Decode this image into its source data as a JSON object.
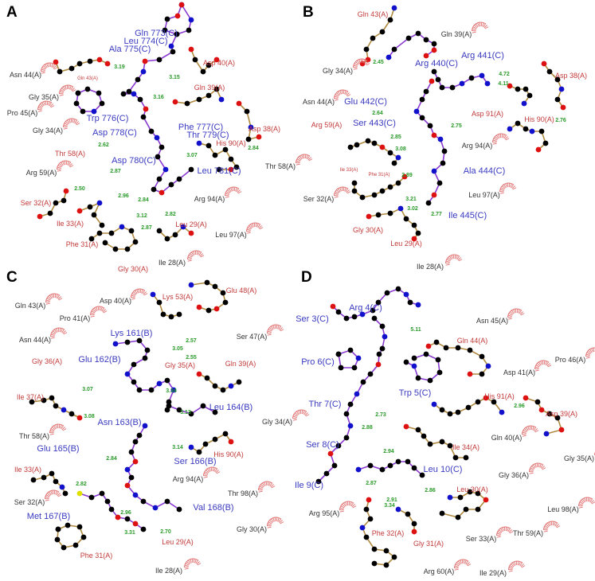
{
  "colors": {
    "ligand": "#3a3ac0",
    "hbond_residue": "#c23a3a",
    "hydrophobic_residue": "#333333",
    "distance": "#2a9a2a",
    "ligand_bond": "#8a3ad0",
    "residue_bond": "#b08a40",
    "carbon": "#000000",
    "oxygen": "#dd1111",
    "nitrogen": "#1111cc",
    "sulfur": "#e0e000",
    "hydrophobic_arc": "#e07070"
  },
  "panels": [
    {
      "letter": "A",
      "labels": [
        {
          "text": "Gln 773(C)",
          "kind": "ligand"
        },
        {
          "text": "Leu 774(C)",
          "kind": "ligand"
        },
        {
          "text": "Ala 775(C)",
          "kind": "ligand"
        },
        {
          "text": "Asn 44(A)",
          "kind": "hydrophobic"
        },
        {
          "text": "Gln 43(A)",
          "kind": "hbond-small"
        },
        {
          "text": "3.19",
          "kind": "distance"
        },
        {
          "text": "Asp 40(A)",
          "kind": "hbond"
        },
        {
          "text": "3.15",
          "kind": "distance"
        },
        {
          "text": "Gln 39(A)",
          "kind": "hbond"
        },
        {
          "text": "3.16",
          "kind": "distance"
        },
        {
          "text": "Gly 35(A)",
          "kind": "hydrophobic"
        },
        {
          "text": "Pro 45(A)",
          "kind": "hydrophobic"
        },
        {
          "text": "Trp 776(C)",
          "kind": "ligand"
        },
        {
          "text": "Gly 34(A)",
          "kind": "hydrophobic"
        },
        {
          "text": "Phe 777(C)",
          "kind": "ligand"
        },
        {
          "text": "Asp 778(C)",
          "kind": "ligand"
        },
        {
          "text": "Thr 779(C)",
          "kind": "ligand"
        },
        {
          "text": "Asp 38(A)",
          "kind": "hbond"
        },
        {
          "text": "His 90(A)",
          "kind": "hbond"
        },
        {
          "text": "2.62",
          "kind": "distance"
        },
        {
          "text": "2.84",
          "kind": "distance"
        },
        {
          "text": "3.07",
          "kind": "distance"
        },
        {
          "text": "Thr 58(A)",
          "kind": "hbond"
        },
        {
          "text": "Asp 780(C)",
          "kind": "ligand"
        },
        {
          "text": "Arg 59(A)",
          "kind": "hydrophobic"
        },
        {
          "text": "2.87",
          "kind": "distance"
        },
        {
          "text": "Leu 781(C)",
          "kind": "ligand"
        },
        {
          "text": "2.50",
          "kind": "distance"
        },
        {
          "text": "2.96",
          "kind": "distance"
        },
        {
          "text": "Arg 94(A)",
          "kind": "hydrophobic"
        },
        {
          "text": "2.84",
          "kind": "distance"
        },
        {
          "text": "Ser 32(A)",
          "kind": "hbond"
        },
        {
          "text": "2.82",
          "kind": "distance"
        },
        {
          "text": "Ile 33(A)",
          "kind": "hbond"
        },
        {
          "text": "3.12",
          "kind": "distance"
        },
        {
          "text": "Leu 29(A)",
          "kind": "hbond"
        },
        {
          "text": "2.87",
          "kind": "distance"
        },
        {
          "text": "Leu 97(A)",
          "kind": "hydrophobic"
        },
        {
          "text": "Phe 31(A)",
          "kind": "hbond"
        },
        {
          "text": "Ile 28(A)",
          "kind": "hydrophobic"
        },
        {
          "text": "Gly 30(A)",
          "kind": "hbond"
        }
      ]
    },
    {
      "letter": "B",
      "labels": [
        {
          "text": "Gln 43(A)",
          "kind": "hbond"
        },
        {
          "text": "Gln 39(A)",
          "kind": "hydrophobic"
        },
        {
          "text": "Arg 441(C)",
          "kind": "ligand"
        },
        {
          "text": "Arg 440(C)",
          "kind": "ligand"
        },
        {
          "text": "2.45",
          "kind": "distance"
        },
        {
          "text": "Gly 34(A)",
          "kind": "hydrophobic"
        },
        {
          "text": "Asp 38(A)",
          "kind": "hbond"
        },
        {
          "text": "4.72",
          "kind": "distance"
        },
        {
          "text": "4.11",
          "kind": "distance"
        },
        {
          "text": "Asn 44(A)",
          "kind": "hydrophobic"
        },
        {
          "text": "Glu 442(C)",
          "kind": "ligand"
        },
        {
          "text": "2.64",
          "kind": "distance"
        },
        {
          "text": "Asp 91(A)",
          "kind": "hbond"
        },
        {
          "text": "His 90(A)",
          "kind": "hbond"
        },
        {
          "text": "2.76",
          "kind": "distance"
        },
        {
          "text": "Arg 59(A)",
          "kind": "hbond"
        },
        {
          "text": "Ser 443(C)",
          "kind": "ligand"
        },
        {
          "text": "2.75",
          "kind": "distance"
        },
        {
          "text": "2.85",
          "kind": "distance"
        },
        {
          "text": "Thr 58(A)",
          "kind": "hydrophobic"
        },
        {
          "text": "3.08",
          "kind": "distance"
        },
        {
          "text": "Arg 94(A)",
          "kind": "hydrophobic"
        },
        {
          "text": "Ile 33(A)",
          "kind": "hbond-small"
        },
        {
          "text": "Phe 31(A)",
          "kind": "hbond-small"
        },
        {
          "text": "Ala 444(C)",
          "kind": "ligand"
        },
        {
          "text": "2.89",
          "kind": "distance"
        },
        {
          "text": "Leu 97(A)",
          "kind": "hydrophobic"
        },
        {
          "text": "Ser 32(A)",
          "kind": "hydrophobic"
        },
        {
          "text": "3.21",
          "kind": "distance"
        },
        {
          "text": "3.02",
          "kind": "distance"
        },
        {
          "text": "Ile 445(C)",
          "kind": "ligand"
        },
        {
          "text": "2.77",
          "kind": "distance"
        },
        {
          "text": "Gly 30(A)",
          "kind": "hbond"
        },
        {
          "text": "Leu 29(A)",
          "kind": "hbond"
        },
        {
          "text": "Ile 28(A)",
          "kind": "hydrophobic"
        }
      ]
    },
    {
      "letter": "C",
      "labels": [
        {
          "text": "Lys 53(A)",
          "kind": "hbond"
        },
        {
          "text": "Glu 48(A)",
          "kind": "hbond"
        },
        {
          "text": "Gln 43(A)",
          "kind": "hydrophobic"
        },
        {
          "text": "Asp 40(A)",
          "kind": "hydrophobic"
        },
        {
          "text": "Pro 41(A)",
          "kind": "hydrophobic"
        },
        {
          "text": "Lys 161(B)",
          "kind": "ligand"
        },
        {
          "text": "Ser 47(A)",
          "kind": "hydrophobic"
        },
        {
          "text": "Asn 44(A)",
          "kind": "hydrophobic"
        },
        {
          "text": "2.57",
          "kind": "distance"
        },
        {
          "text": "3.05",
          "kind": "distance"
        },
        {
          "text": "2.55",
          "kind": "distance"
        },
        {
          "text": "Glu 162(B)",
          "kind": "ligand"
        },
        {
          "text": "Gly 36(A)",
          "kind": "hbond"
        },
        {
          "text": "Gly 35(A)",
          "kind": "hbond"
        },
        {
          "text": "Gln 39(A)",
          "kind": "hbond"
        },
        {
          "text": "3.07",
          "kind": "distance"
        },
        {
          "text": "3.34",
          "kind": "distance"
        },
        {
          "text": "Ile 37(A)",
          "kind": "hbond"
        },
        {
          "text": "3.13",
          "kind": "distance"
        },
        {
          "text": "Leu 164(B)",
          "kind": "ligand"
        },
        {
          "text": "3.08",
          "kind": "distance"
        },
        {
          "text": "Asn 163(B)",
          "kind": "ligand"
        },
        {
          "text": "Gly 34(A)",
          "kind": "hydrophobic"
        },
        {
          "text": "Thr 58(A)",
          "kind": "hydrophobic"
        },
        {
          "text": "Glu 165(B)",
          "kind": "ligand"
        },
        {
          "text": "3.14",
          "kind": "distance"
        },
        {
          "text": "His 90(A)",
          "kind": "hbond"
        },
        {
          "text": "2.84",
          "kind": "distance"
        },
        {
          "text": "Ser 166(B)",
          "kind": "ligand"
        },
        {
          "text": "Ile 33(A)",
          "kind": "hbond"
        },
        {
          "text": "Arg 94(A)",
          "kind": "hydrophobic"
        },
        {
          "text": "2.82",
          "kind": "distance"
        },
        {
          "text": "Thr 98(A)",
          "kind": "hydrophobic"
        },
        {
          "text": "Ser 32(A)",
          "kind": "hydrophobic"
        },
        {
          "text": "Val 168(B)",
          "kind": "ligand"
        },
        {
          "text": "2.96",
          "kind": "distance"
        },
        {
          "text": "Met 167(B)",
          "kind": "ligand"
        },
        {
          "text": "Gly 30(A)",
          "kind": "hydrophobic"
        },
        {
          "text": "3.31",
          "kind": "distance"
        },
        {
          "text": "2.70",
          "kind": "distance"
        },
        {
          "text": "Leu 29(A)",
          "kind": "hbond"
        },
        {
          "text": "Phe 31(A)",
          "kind": "hbond"
        },
        {
          "text": "Ile 28(A)",
          "kind": "hydrophobic"
        }
      ]
    },
    {
      "letter": "D",
      "labels": [
        {
          "text": "Arg 4(C)",
          "kind": "ligand"
        },
        {
          "text": "Ser 3(C)",
          "kind": "ligand"
        },
        {
          "text": "Asn 45(A)",
          "kind": "hydrophobic"
        },
        {
          "text": "5.11",
          "kind": "distance"
        },
        {
          "text": "Gln 44(A)",
          "kind": "hbond"
        },
        {
          "text": "Pro 46(A)",
          "kind": "hydrophobic"
        },
        {
          "text": "Pro 6(C)",
          "kind": "ligand"
        },
        {
          "text": "Asp 41(A)",
          "kind": "hydrophobic"
        },
        {
          "text": "Trp 5(C)",
          "kind": "ligand"
        },
        {
          "text": "His 91(A)",
          "kind": "hbond"
        },
        {
          "text": "2.96",
          "kind": "distance"
        },
        {
          "text": "Thr 7(C)",
          "kind": "ligand"
        },
        {
          "text": "2.73",
          "kind": "distance"
        },
        {
          "text": "Asp 39(A)",
          "kind": "hbond"
        },
        {
          "text": "2.88",
          "kind": "distance"
        },
        {
          "text": "Gln 40(A)",
          "kind": "hydrophobic"
        },
        {
          "text": "Ser 8(C)",
          "kind": "ligand"
        },
        {
          "text": "Ile 34(A)",
          "kind": "hbond"
        },
        {
          "text": "2.94",
          "kind": "distance"
        },
        {
          "text": "Gly 35(A)",
          "kind": "hydrophobic"
        },
        {
          "text": "Leu 10(C)",
          "kind": "ligand"
        },
        {
          "text": "Gly 36(A)",
          "kind": "hydrophobic"
        },
        {
          "text": "Ile 9(C)",
          "kind": "ligand"
        },
        {
          "text": "2.87",
          "kind": "distance"
        },
        {
          "text": "Leu 30(A)",
          "kind": "hbond"
        },
        {
          "text": "2.86",
          "kind": "distance"
        },
        {
          "text": "2.91",
          "kind": "distance"
        },
        {
          "text": "3.34",
          "kind": "distance"
        },
        {
          "text": "Leu 98(A)",
          "kind": "hydrophobic"
        },
        {
          "text": "Arg 95(A)",
          "kind": "hydrophobic"
        },
        {
          "text": "Phe 32(A)",
          "kind": "hbond"
        },
        {
          "text": "Thr 59(A)",
          "kind": "hydrophobic"
        },
        {
          "text": "Gly 31(A)",
          "kind": "hbond"
        },
        {
          "text": "Ser 33(A)",
          "kind": "hydrophobic"
        },
        {
          "text": "Arg 60(A)",
          "kind": "hydrophobic"
        },
        {
          "text": "Ile 29(A)",
          "kind": "hydrophobic"
        }
      ]
    }
  ]
}
